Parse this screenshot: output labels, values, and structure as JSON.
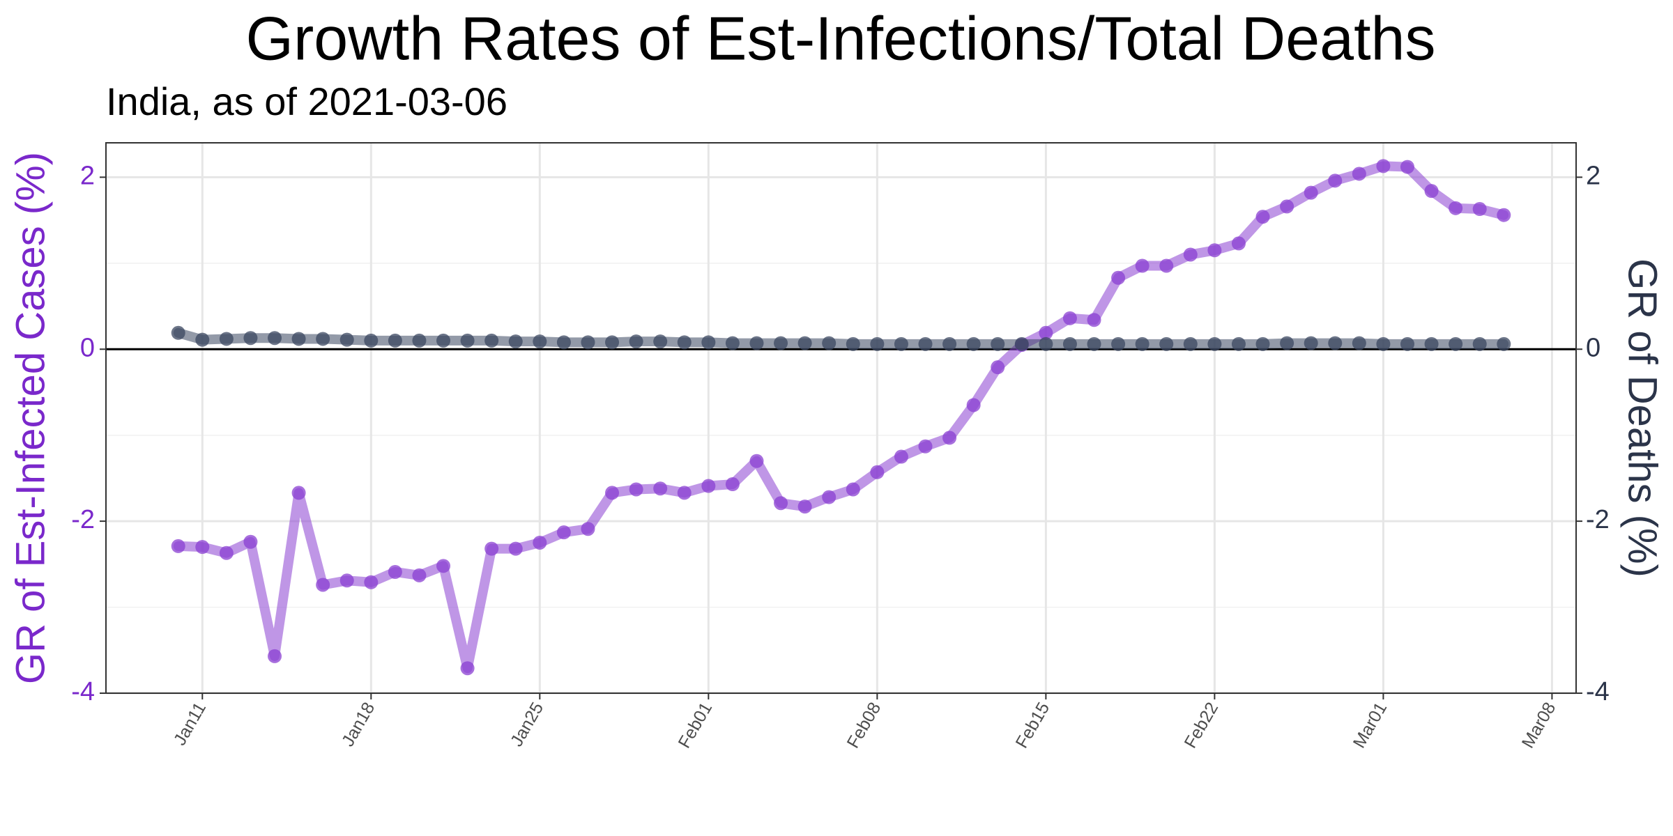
{
  "chart_data": {
    "type": "line",
    "title": "Growth Rates of Est-Infections/Total Deaths",
    "subtitle": "India, as of 2021-03-06",
    "y_label": "GR of Est-Infected Cases (%)",
    "y2_label": "GR of Deaths (%)",
    "x": [
      "Jan10",
      "Jan11",
      "Jan12",
      "Jan13",
      "Jan14",
      "Jan15",
      "Jan16",
      "Jan17",
      "Jan18",
      "Jan19",
      "Jan20",
      "Jan21",
      "Jan22",
      "Jan23",
      "Jan24",
      "Jan25",
      "Jan26",
      "Jan27",
      "Jan28",
      "Jan29",
      "Jan30",
      "Jan31",
      "Feb01",
      "Feb02",
      "Feb03",
      "Feb04",
      "Feb05",
      "Feb06",
      "Feb07",
      "Feb08",
      "Feb09",
      "Feb10",
      "Feb11",
      "Feb12",
      "Feb13",
      "Feb14",
      "Feb15",
      "Feb16",
      "Feb17",
      "Feb18",
      "Feb19",
      "Feb20",
      "Feb21",
      "Feb22",
      "Feb23",
      "Feb24",
      "Feb25",
      "Feb26",
      "Feb27",
      "Feb28",
      "Mar01",
      "Mar02",
      "Mar03",
      "Mar04",
      "Mar05",
      "Mar06"
    ],
    "series": [
      {
        "name": "GR of Est-Infected Cases",
        "color": "#8a3fd1",
        "axis": "y",
        "values": [
          -2.29,
          -2.3,
          -2.37,
          -2.24,
          -3.57,
          -1.67,
          -2.74,
          -2.69,
          -2.71,
          -2.59,
          -2.63,
          -2.52,
          -3.71,
          -2.32,
          -2.32,
          -2.25,
          -2.13,
          -2.09,
          -1.67,
          -1.63,
          -1.62,
          -1.67,
          -1.59,
          -1.57,
          -1.3,
          -1.79,
          -1.83,
          -1.72,
          -1.63,
          -1.43,
          -1.25,
          -1.13,
          -1.03,
          -0.65,
          -0.21,
          0.05,
          0.19,
          0.36,
          0.34,
          0.83,
          0.97,
          0.97,
          1.1,
          1.15,
          1.23,
          1.54,
          1.66,
          1.82,
          1.96,
          2.04,
          2.13,
          2.12,
          1.84,
          1.64,
          1.63,
          1.56
        ]
      },
      {
        "name": "GR of Deaths",
        "color": "#3b4760",
        "axis": "y2",
        "values": [
          0.19,
          0.11,
          0.12,
          0.13,
          0.13,
          0.12,
          0.12,
          0.11,
          0.1,
          0.1,
          0.1,
          0.1,
          0.1,
          0.1,
          0.09,
          0.09,
          0.08,
          0.08,
          0.08,
          0.09,
          0.09,
          0.08,
          0.08,
          0.07,
          0.07,
          0.07,
          0.07,
          0.07,
          0.06,
          0.06,
          0.06,
          0.06,
          0.06,
          0.06,
          0.06,
          0.06,
          0.06,
          0.06,
          0.06,
          0.06,
          0.06,
          0.06,
          0.06,
          0.06,
          0.06,
          0.06,
          0.07,
          0.07,
          0.07,
          0.07,
          0.06,
          0.06,
          0.06,
          0.06,
          0.06,
          0.06
        ]
      }
    ],
    "xlim": [
      "Jan07",
      "Mar09"
    ],
    "xticks": [
      "Jan11",
      "Jan18",
      "Jan25",
      "Feb01",
      "Feb08",
      "Feb15",
      "Feb22",
      "Mar01",
      "Mar08"
    ],
    "ylim": [
      -4,
      2.4
    ],
    "yticks": [
      -4,
      -2,
      0,
      2
    ],
    "y2lim": [
      -4,
      2.4
    ],
    "y2ticks": [
      -4,
      -2,
      0,
      2
    ],
    "hline": 0,
    "grid": true,
    "y_label_color": "#7a28cb",
    "y2_label_color": "#2b3449"
  }
}
